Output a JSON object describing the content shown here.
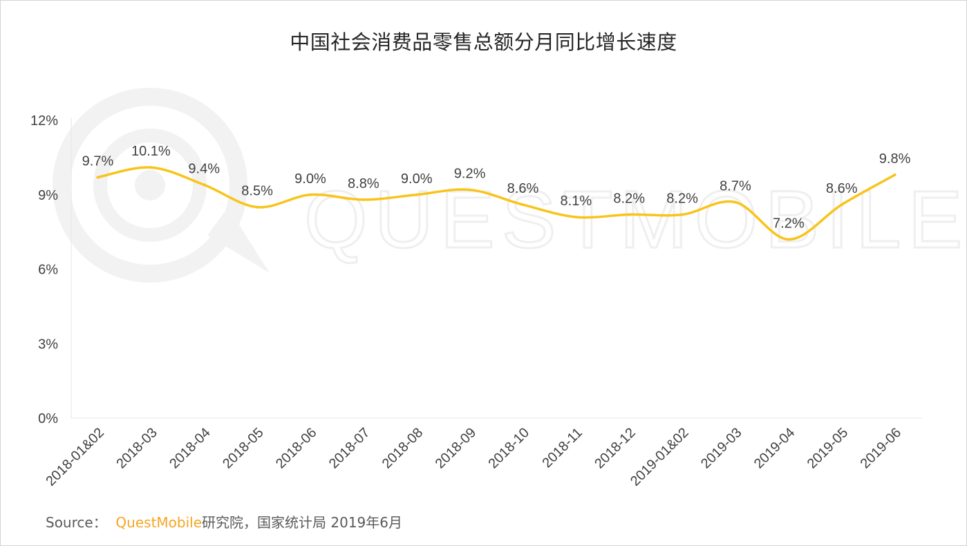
{
  "title": "中国社会消费品零售总额分月同比增长速度",
  "source": {
    "prefix": "Source：",
    "brand": "QuestMobile",
    "rest": "研究院，国家统计局 2019年6月"
  },
  "watermark": "QUESTMOBILE",
  "colors": {
    "line": "#F8C41B",
    "axis_text": "#404040",
    "grid": "#e6e6e6",
    "brand": "#F5A623"
  },
  "chart_data": {
    "type": "line",
    "title": "中国社会消费品零售总额分月同比增长速度",
    "categories": [
      "2018-01&02",
      "2018-03",
      "2018-04",
      "2018-05",
      "2018-06",
      "2018-07",
      "2018-08",
      "2018-09",
      "2018-10",
      "2018-11",
      "2018-12",
      "2019-01&02",
      "2019-03",
      "2019-04",
      "2019-05",
      "2019-06"
    ],
    "values": [
      9.7,
      10.1,
      9.4,
      8.5,
      9.0,
      8.8,
      9.0,
      9.2,
      8.6,
      8.1,
      8.2,
      8.2,
      8.7,
      7.2,
      8.6,
      9.8
    ],
    "data_labels": [
      "9.7%",
      "10.1%",
      "9.4%",
      "8.5%",
      "9.0%",
      "8.8%",
      "9.0%",
      "9.2%",
      "8.6%",
      "8.1%",
      "8.2%",
      "8.2%",
      "8.7%",
      "7.2%",
      "8.6%",
      "9.8%"
    ],
    "yticks": [
      0,
      3,
      6,
      9,
      12
    ],
    "ytick_labels": [
      "0%",
      "3%",
      "6%",
      "9%",
      "12%"
    ],
    "ylim": [
      0,
      12
    ],
    "xlabel": "",
    "ylabel": "",
    "grid": false,
    "smooth": true
  }
}
